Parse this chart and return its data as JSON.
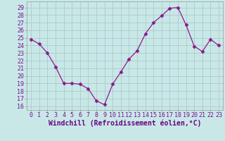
{
  "x": [
    0,
    1,
    2,
    3,
    4,
    5,
    6,
    7,
    8,
    9,
    10,
    11,
    12,
    13,
    14,
    15,
    16,
    17,
    18,
    19,
    20,
    21,
    22,
    23
  ],
  "y": [
    24.8,
    24.2,
    23.0,
    21.2,
    19.0,
    19.0,
    18.9,
    18.3,
    16.7,
    16.2,
    18.9,
    20.5,
    22.2,
    23.3,
    25.5,
    27.0,
    27.9,
    28.9,
    29.0,
    26.7,
    23.9,
    23.2,
    24.8,
    24.0
  ],
  "line_color": "#8b1a8b",
  "marker": "D",
  "marker_size": 2.5,
  "bg_color": "#c8e8e8",
  "grid_color": "#b0c8c8",
  "xlabel": "Windchill (Refroidissement éolien,°C)",
  "ylabel_ticks": [
    16,
    17,
    18,
    19,
    20,
    21,
    22,
    23,
    24,
    25,
    26,
    27,
    28,
    29
  ],
  "ylim": [
    15.5,
    29.8
  ],
  "xlim": [
    -0.5,
    23.5
  ],
  "xlabel_color": "#6b0080",
  "tick_color": "#7b1090",
  "tick_fontsize": 6,
  "xlabel_fontsize": 7,
  "linewidth": 0.9
}
